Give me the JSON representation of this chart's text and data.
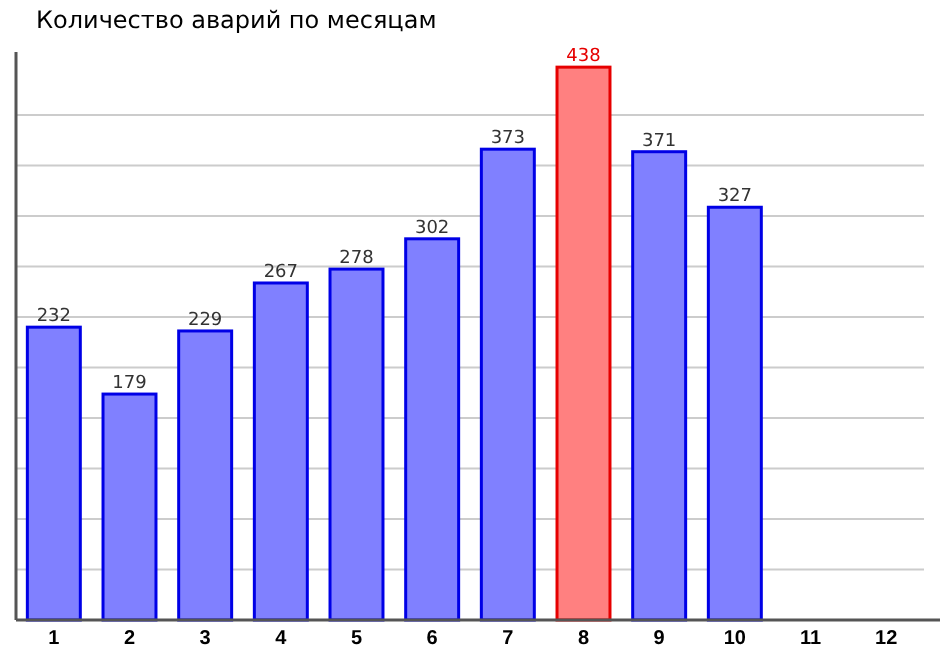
{
  "chart_data": {
    "type": "bar",
    "title": "Количество аварий по месяцам",
    "categories": [
      "1",
      "2",
      "3",
      "4",
      "5",
      "6",
      "7",
      "8",
      "9",
      "10",
      "11",
      "12"
    ],
    "values": [
      232,
      179,
      229,
      267,
      278,
      302,
      373,
      438,
      371,
      327,
      null,
      null
    ],
    "colors": [
      "#8080ff",
      "#8080ff",
      "#8080ff",
      "#8080ff",
      "#8080ff",
      "#8080ff",
      "#8080ff",
      "#ff8080",
      "#8080ff",
      "#8080ff",
      null,
      null
    ],
    "ylim": [
      0,
      450
    ],
    "yticks": [
      {
        "value": 40,
        "label": null
      },
      {
        "value": 80,
        "label": null
      },
      {
        "value": 120,
        "label": null
      },
      {
        "value": 160,
        "label": null
      },
      {
        "value": 200,
        "label": null
      },
      {
        "value": 240,
        "label": null
      },
      {
        "value": 280,
        "label": null
      },
      {
        "value": 320,
        "label": null
      },
      {
        "value": 360,
        "label": null
      },
      {
        "value": 400,
        "label": null
      }
    ],
    "grid": "y",
    "data_labels": true,
    "tick_labels": "x"
  }
}
